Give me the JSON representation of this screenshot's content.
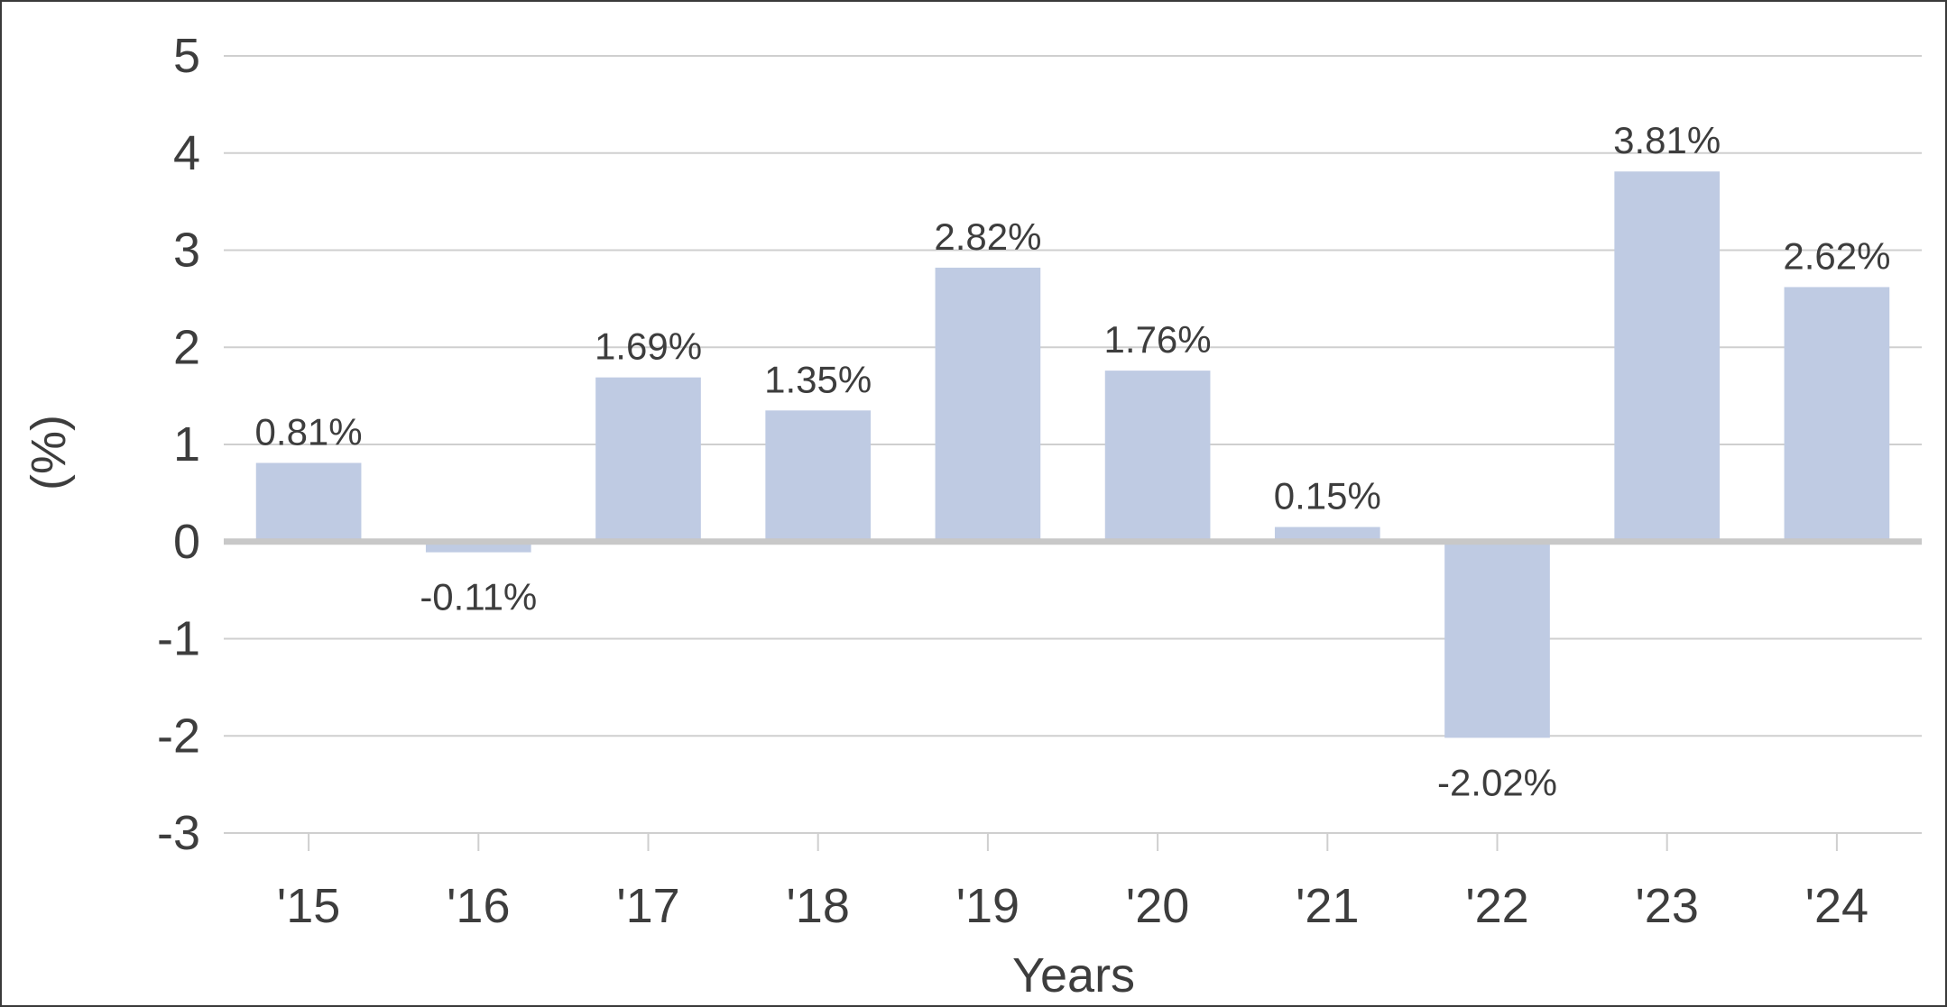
{
  "chart_data": {
    "type": "bar",
    "categories": [
      "'15",
      "'16",
      "'17",
      "'18",
      "'19",
      "'20",
      "'21",
      "'22",
      "'23",
      "'24"
    ],
    "values": [
      0.81,
      -0.11,
      1.69,
      1.35,
      2.82,
      1.76,
      0.15,
      -2.02,
      3.81,
      2.62
    ],
    "data_labels": [
      "0.81%",
      "-0.11%",
      "1.69%",
      "1.35%",
      "2.82%",
      "1.76%",
      "0.15%",
      "-2.02%",
      "3.81%",
      "2.62%"
    ],
    "xlabel": "Years",
    "ylabel": "(%)",
    "ylim": [
      -3,
      5
    ],
    "yticks": [
      "-3",
      "-2",
      "-1",
      "0",
      "1",
      "2",
      "3",
      "4",
      "5"
    ],
    "grid": true,
    "colors": {
      "bar": "#bfcbe3",
      "grid": "#cfcfcf",
      "zero_line": "#c8c8c8",
      "text": "#3d3d3d",
      "border": "#3a3a3a"
    }
  }
}
